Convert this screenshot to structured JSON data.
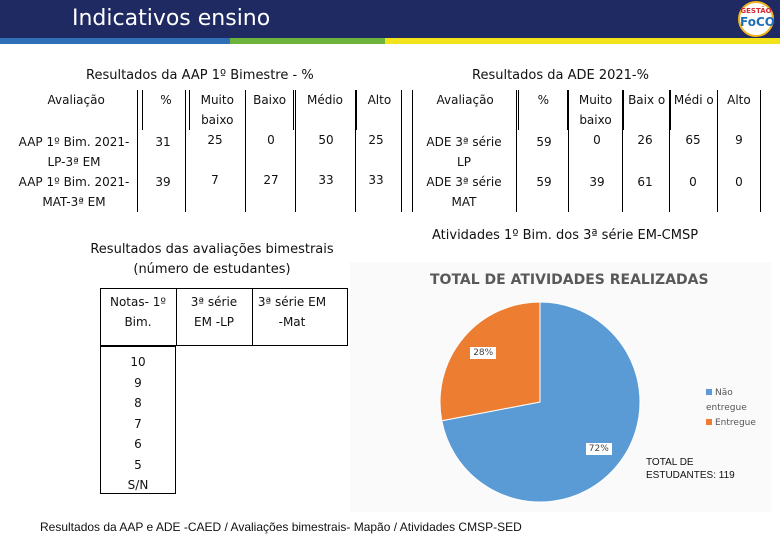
{
  "header": {
    "title": "Indicativos ensino",
    "logo_top": "GESTÃO",
    "logo_main": "FoCO"
  },
  "colors": {
    "header_bg": "#1f2a63",
    "stripe_blue": "#2f6fb6",
    "stripe_green": "#6bb33b",
    "stripe_yellow": "#f2e21b",
    "pie_blue": "#5b9bd5",
    "pie_orange": "#ed7d31"
  },
  "aap": {
    "title": "Resultados da AAP 1º Bimestre - %",
    "headers": [
      "Avaliação",
      "%",
      "Muito baixo",
      "Baixo",
      "Médio",
      "Alto"
    ],
    "rows": [
      {
        "label": "AAP 1º Bim. 2021-LP-3ª EM",
        "pct": "31",
        "muito_baixo": "25",
        "baixo": "0",
        "medio": "50",
        "alto": "25"
      },
      {
        "label": "AAP 1º Bim. 2021-MAT-3ª EM",
        "pct": "39",
        "muito_baixo": "7",
        "baixo": "27",
        "medio": "33",
        "alto": "33"
      }
    ]
  },
  "ade": {
    "title": "Resultados da ADE 2021-%",
    "headers": [
      "Avaliação",
      "%",
      "Muito baixo",
      "Baix o",
      "Médi o",
      "Alto"
    ],
    "rows": [
      {
        "label": "ADE 3ª série LP",
        "pct": "59",
        "muito_baixo": "0",
        "baixo": "26",
        "medio": "65",
        "alto": "9"
      },
      {
        "label": "ADE 3ª série MAT",
        "pct": "59",
        "muito_baixo": "39",
        "baixo": "61",
        "medio": "0",
        "alto": "0"
      }
    ]
  },
  "bimestrais": {
    "title": "Resultados das avaliações bimestrais (número de estudantes)",
    "headers": [
      "Notas- 1º Bim.",
      "3ª série EM -LP",
      "3ª série EM -Mat"
    ],
    "grades": [
      "10",
      "9",
      "8",
      "7",
      "6",
      "5",
      "S/N"
    ]
  },
  "atividades": {
    "title": "Atividades 1º Bim. dos 3ª série EM-CMSP",
    "chart_title": "TOTAL DE ATIVIDADES REALIZADAS",
    "total_note": "TOTAL DE ESTUDANTES: 119"
  },
  "chart_data": {
    "type": "pie",
    "title": "TOTAL DE ATIVIDADES REALIZADAS",
    "labels": [
      "Não entregue",
      "Entregue"
    ],
    "values": [
      72,
      28
    ],
    "data_labels": [
      "72%",
      "28%"
    ],
    "colors": [
      "#5b9bd5",
      "#ed7d31"
    ],
    "legend_position": "right"
  },
  "footer": {
    "text": "Resultados da AAP e ADE -CAED / Avaliações bimestrais- Mapão / Atividades CMSP-SED"
  }
}
